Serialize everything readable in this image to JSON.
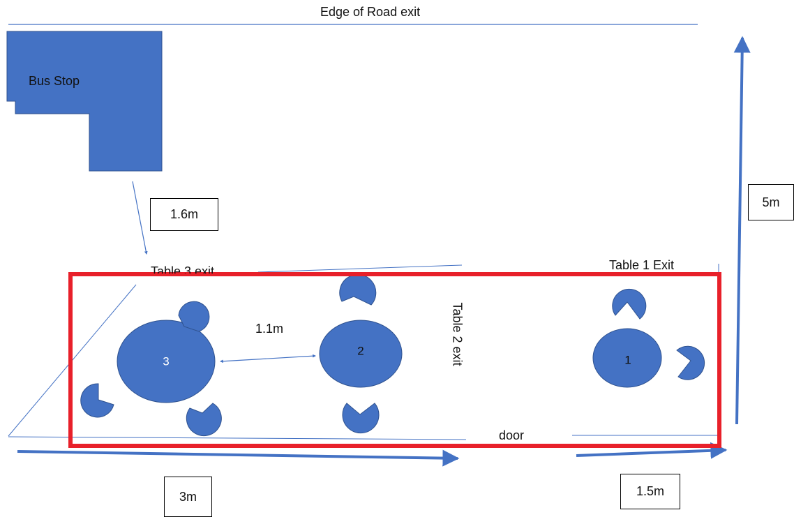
{
  "labels": {
    "edge_of_road": "Edge of Road exit",
    "bus_stop": "Bus Stop",
    "table3_exit": "Table 3 exit",
    "table1_exit": "Table 1 Exit",
    "table2_exit": "Table 2 exit",
    "door": "door"
  },
  "measurements": {
    "bus_to_table": "1.6m",
    "between_tables": "1.1m",
    "side_height": "5m",
    "bottom_left": "3m",
    "bottom_right": "1.5m"
  },
  "tables": [
    {
      "number": "3"
    },
    {
      "number": "2"
    },
    {
      "number": "1"
    }
  ],
  "colors": {
    "shape_fill": "#4472C4",
    "shape_stroke": "#2F528F",
    "highlight": "#E8202A",
    "line": "#4472C4",
    "table3_text": "#ffffff",
    "table2_text": "#111111",
    "table1_text": "#111111"
  }
}
